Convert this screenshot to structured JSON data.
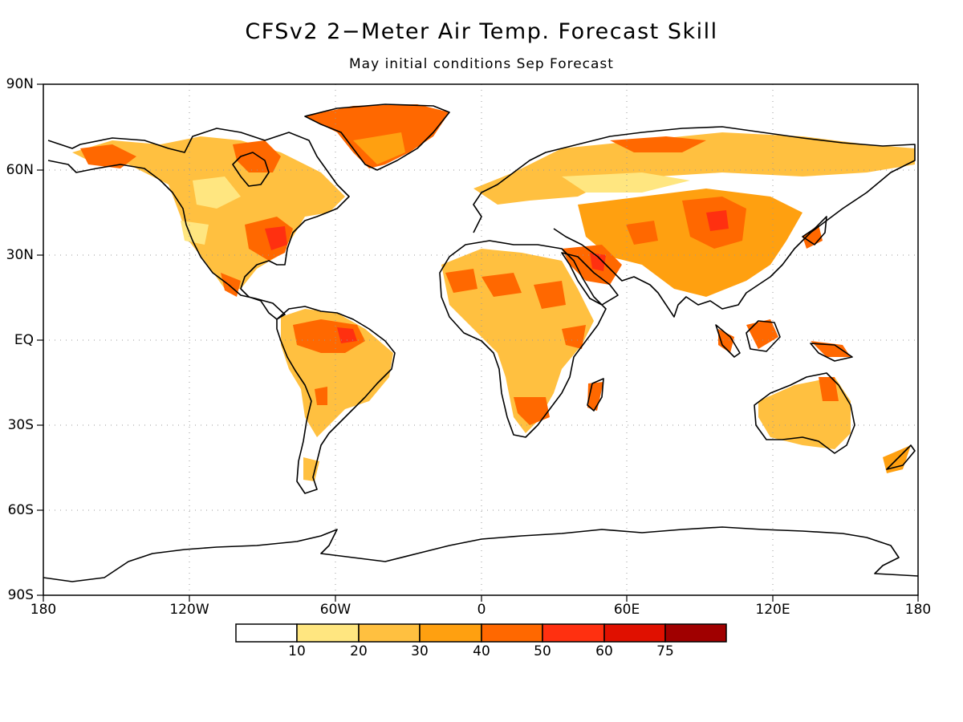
{
  "title": "CFSv2 2−Meter Air Temp. Forecast Skill",
  "subtitle": "May initial conditions   Sep Forecast",
  "axes": {
    "lat_labels": [
      "90N",
      "60N",
      "30N",
      "EQ",
      "30S",
      "60S",
      "90S"
    ],
    "lon_labels": [
      "180",
      "120W",
      "60W",
      "0",
      "60E",
      "120E",
      "180"
    ]
  },
  "colorbar": {
    "colors": [
      "#ffffff",
      "#ffe680",
      "#ffc040",
      "#ffa010",
      "#ff6800",
      "#ff3010",
      "#e01000",
      "#a00000"
    ],
    "labels": [
      "10",
      "20",
      "30",
      "40",
      "50",
      "60",
      "75"
    ]
  },
  "colors": {
    "coast": "#000000",
    "grid": "#999999"
  }
}
